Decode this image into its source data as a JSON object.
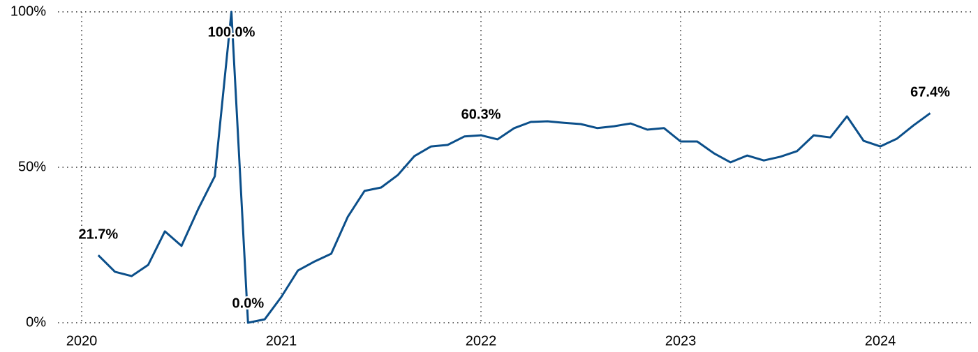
{
  "chart_data": {
    "type": "line",
    "x": [
      "2020-02",
      "2020-03",
      "2020-04",
      "2020-05",
      "2020-06",
      "2020-07",
      "2020-08",
      "2020-09",
      "2020-10",
      "2020-11",
      "2020-12",
      "2021-01",
      "2021-02",
      "2021-03",
      "2021-04",
      "2021-05",
      "2021-06",
      "2021-07",
      "2021-08",
      "2021-09",
      "2021-10",
      "2021-11",
      "2021-12",
      "2022-01",
      "2022-02",
      "2022-03",
      "2022-04",
      "2022-05",
      "2022-06",
      "2022-07",
      "2022-08",
      "2022-09",
      "2022-10",
      "2022-11",
      "2022-12",
      "2023-01",
      "2023-02",
      "2023-03",
      "2023-04",
      "2023-05",
      "2023-06",
      "2023-07",
      "2023-08",
      "2023-09",
      "2023-10",
      "2023-11",
      "2023-12",
      "2024-01",
      "2024-02",
      "2024-03",
      "2024-04"
    ],
    "series": [
      {
        "color": "#0b4f8a",
        "values": [
          21.7,
          16.4,
          15.0,
          18.6,
          29.4,
          24.7,
          36.5,
          47.1,
          100.0,
          0.0,
          1.1,
          8.3,
          16.8,
          19.7,
          22.2,
          34.1,
          42.4,
          43.5,
          47.5,
          53.6,
          56.7,
          57.2,
          59.9,
          60.3,
          59.0,
          62.6,
          64.6,
          64.8,
          64.3,
          63.9,
          62.6,
          63.2,
          64.1,
          62.1,
          62.6,
          58.3,
          58.3,
          54.5,
          51.6,
          53.8,
          52.2,
          53.4,
          55.2,
          60.3,
          59.6,
          66.4,
          58.5,
          56.7,
          59.2,
          63.5,
          67.4
        ],
        "value_labels": [
          "21.7%",
          null,
          null,
          null,
          null,
          null,
          null,
          null,
          "100.0%",
          "0.0%",
          null,
          null,
          null,
          null,
          null,
          null,
          null,
          null,
          null,
          null,
          null,
          null,
          null,
          "60.3%",
          null,
          null,
          null,
          null,
          null,
          null,
          null,
          null,
          null,
          null,
          null,
          null,
          null,
          null,
          null,
          null,
          null,
          null,
          null,
          null,
          null,
          null,
          null,
          null,
          null,
          null,
          "67.4%"
        ]
      }
    ],
    "xlim": [
      "2019-11",
      "2024-06"
    ],
    "xticks": [
      {
        "value": "2020-01",
        "label": "2020"
      },
      {
        "value": "2021-01",
        "label": "2021"
      },
      {
        "value": "2022-01",
        "label": "2022"
      },
      {
        "value": "2023-01",
        "label": "2023"
      },
      {
        "value": "2024-01",
        "label": "2024"
      }
    ],
    "ylim": [
      0,
      100
    ],
    "yticks": [
      {
        "value": 0,
        "label": "0%"
      },
      {
        "value": 50,
        "label": "50%"
      },
      {
        "value": 100,
        "label": "100%"
      }
    ],
    "grid": true
  }
}
